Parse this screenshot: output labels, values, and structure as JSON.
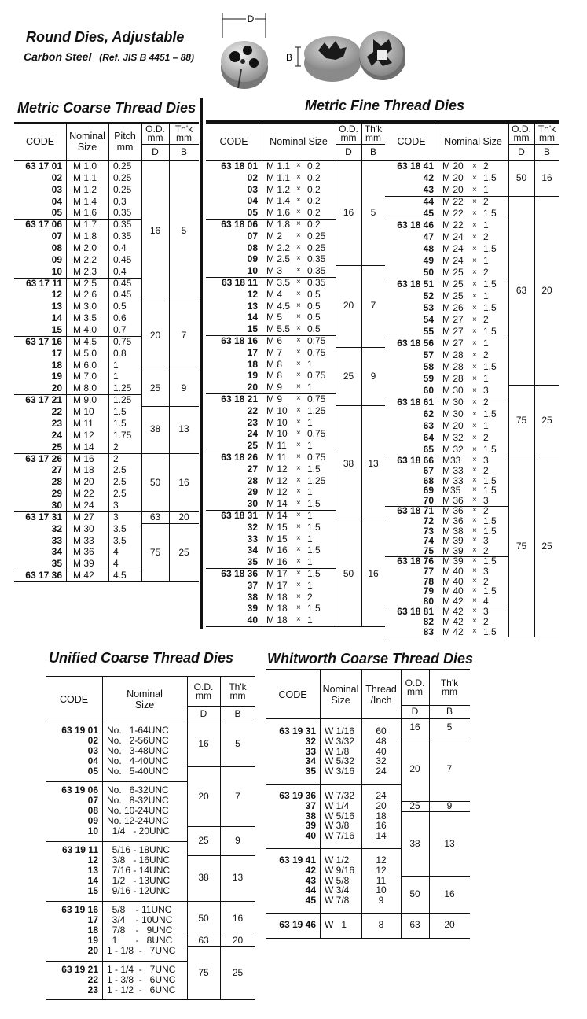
{
  "header": {
    "title": "Round Dies, Adjustable",
    "subtitle": "Carbon Steel",
    "reference": "(Ref. JIS B 4451 – 88)",
    "dim_d": "D",
    "dim_b": "B"
  },
  "tables": {
    "coarse": {
      "title": "Metric Coarse Thread Dies",
      "header": {
        "code": "CODE",
        "nominal": "Nominal\nSize",
        "pitch": "Pitch\nmm",
        "od": "O.D.\nmm",
        "od_sym": "D",
        "thk": "Th'k\nmm",
        "thk_sym": "B"
      },
      "rows": [
        [
          "63 17 01",
          "M 1.0",
          "0.25"
        ],
        [
          "02",
          "M 1.1",
          "0.25"
        ],
        [
          "03",
          "M 1.2",
          "0.25"
        ],
        [
          "04",
          "M 1.4",
          "0.3"
        ],
        [
          "05",
          "M 1.6",
          "0.35"
        ],
        [
          "63 17 06",
          "M 1.7",
          "0.35"
        ],
        [
          "07",
          "M 1.8",
          "0.35"
        ],
        [
          "08",
          "M 2.0",
          "0.4"
        ],
        [
          "09",
          "M 2.2",
          "0.45"
        ],
        [
          "10",
          "M 2.3",
          "0.4"
        ],
        [
          "63 17 11",
          "M 2.5",
          "0.45"
        ],
        [
          "12",
          "M 2.6",
          "0.45"
        ],
        [
          "13",
          "M 3.0",
          "0.5"
        ],
        [
          "14",
          "M 3.5",
          "0.6"
        ],
        [
          "15",
          "M 4.0",
          "0.7"
        ],
        [
          "63 17 16",
          "M 4.5",
          "0.75"
        ],
        [
          "17",
          "M 5.0",
          "0.8"
        ],
        [
          "18",
          "M 6.0",
          "1"
        ],
        [
          "19",
          "M 7.0",
          "1"
        ],
        [
          "20",
          "M 8.0",
          "1.25"
        ],
        [
          "63 17 21",
          "M 9.0",
          "1.25"
        ],
        [
          "22",
          "M 10",
          "1.5"
        ],
        [
          "23",
          "M 11",
          "1.5"
        ],
        [
          "24",
          "M 12",
          "1.75"
        ],
        [
          "25",
          "M 14",
          "2"
        ],
        [
          "63 17 26",
          "M 16",
          "2"
        ],
        [
          "27",
          "M 18",
          "2.5"
        ],
        [
          "28",
          "M 20",
          "2.5"
        ],
        [
          "29",
          "M 22",
          "2.5"
        ],
        [
          "30",
          "M 24",
          "3"
        ],
        [
          "63 17 31",
          "M 27",
          "3"
        ],
        [
          "32",
          "M 30",
          "3.5"
        ],
        [
          "33",
          "M 33",
          "3.5"
        ],
        [
          "34",
          "M 36",
          "4"
        ],
        [
          "35",
          "M 39",
          "4"
        ],
        [
          "63 17 36",
          "M 42",
          "4.5"
        ]
      ],
      "sizes": [
        {
          "D": "16",
          "B": "5",
          "rows": [
            0,
            11
          ]
        },
        {
          "D": "20",
          "B": "7",
          "rows": [
            12,
            17
          ]
        },
        {
          "D": "25",
          "B": "9",
          "rows": [
            18,
            20
          ]
        },
        {
          "D": "38",
          "B": "13",
          "rows": [
            21,
            24
          ]
        },
        {
          "D": "50",
          "B": "16",
          "rows": [
            25,
            29
          ]
        },
        {
          "D": "63",
          "B": "20",
          "rows": [
            30,
            30
          ]
        },
        {
          "D": "75",
          "B": "25",
          "rows": [
            31,
            35
          ]
        }
      ]
    },
    "fine_left": {
      "title": "Metric Fine Thread Dies",
      "header": {
        "code": "CODE",
        "nominal": "Nominal Size",
        "times": "×",
        "od": "O.D.\nmm",
        "od_sym": "D",
        "thk": "Th'k\nmm",
        "thk_sym": "B"
      },
      "rows": [
        [
          "63 18 01",
          "M 1.1",
          "0.2"
        ],
        [
          "02",
          "M 1.1",
          "0.2"
        ],
        [
          "03",
          "M 1.2",
          "0.2"
        ],
        [
          "04",
          "M 1.4",
          "0.2"
        ],
        [
          "05",
          "M 1.6",
          "0.2"
        ],
        [
          "63 18 06",
          "M 1.8",
          "0.2"
        ],
        [
          "07",
          "M 2",
          "0.25"
        ],
        [
          "08",
          "M 2.2",
          "0.25"
        ],
        [
          "09",
          "M 2.5",
          "0.35"
        ],
        [
          "10",
          "M 3",
          "0.35"
        ],
        [
          "63 18 11",
          "M 3.5",
          "0.35"
        ],
        [
          "12",
          "M 4",
          "0.5"
        ],
        [
          "13",
          "M 4.5",
          "0.5"
        ],
        [
          "14",
          "M 5",
          "0.5"
        ],
        [
          "15",
          "M 5.5",
          "0.5"
        ],
        [
          "63 18 16",
          "M 6",
          "0:75"
        ],
        [
          "17",
          "M 7",
          "0.75"
        ],
        [
          "18",
          "M 8",
          "1"
        ],
        [
          "19",
          "M 8",
          "0.75"
        ],
        [
          "20",
          "M 9",
          "1"
        ],
        [
          "63 18 21",
          "M 9",
          "0.75"
        ],
        [
          "22",
          "M 10",
          "1.25"
        ],
        [
          "23",
          "M 10",
          "1"
        ],
        [
          "24",
          "M 10",
          "0.75"
        ],
        [
          "25",
          "M 11",
          "1"
        ],
        [
          "63 18 26",
          "M 11",
          "0.75"
        ],
        [
          "27",
          "M 12",
          "1.5"
        ],
        [
          "28",
          "M 12",
          "1.25"
        ],
        [
          "29",
          "M 12",
          "1"
        ],
        [
          "30",
          "M 14",
          "1.5"
        ],
        [
          "63 18 31",
          "M 14",
          "1"
        ],
        [
          "32",
          "M 15",
          "1.5"
        ],
        [
          "33",
          "M 15",
          "1"
        ],
        [
          "34",
          "M 16",
          "1.5"
        ],
        [
          "35",
          "M 16",
          "1"
        ],
        [
          "63 18 36",
          "M 17",
          "1.5"
        ],
        [
          "37",
          "M 17",
          "1"
        ],
        [
          "38",
          "M 18",
          "2"
        ],
        [
          "39",
          "M 18",
          "1.5"
        ],
        [
          "40",
          "M 18",
          "1"
        ]
      ],
      "sizes": [
        {
          "D": "16",
          "B": "5",
          "rows": [
            0,
            8
          ]
        },
        {
          "D": "20",
          "B": "7",
          "rows": [
            9,
            15
          ]
        },
        {
          "D": "25",
          "B": "9",
          "rows": [
            16,
            20
          ]
        },
        {
          "D": "38",
          "B": "13",
          "rows": [
            21,
            30
          ]
        },
        {
          "D": "50",
          "B": "16",
          "rows": [
            31,
            39
          ]
        }
      ]
    },
    "fine_right": {
      "header": {
        "code": "CODE",
        "nominal": "Nominal Size",
        "times": "×",
        "od": "O.D.\nmm",
        "od_sym": "D",
        "thk": "Th'k\nmm",
        "thk_sym": "B"
      },
      "rows": [
        [
          "63 18 41",
          "M 20",
          "2"
        ],
        [
          "42",
          "M 20",
          "1.5"
        ],
        [
          "43",
          "M 20",
          "1"
        ],
        [
          "44",
          "M 22",
          "2"
        ],
        [
          "45",
          "M 22",
          "1.5"
        ],
        [
          "63 18 46",
          "M 22",
          "1"
        ],
        [
          "47",
          "M 24",
          "2"
        ],
        [
          "48",
          "M 24",
          "1.5"
        ],
        [
          "49",
          "M 24",
          "1"
        ],
        [
          "50",
          "M 25",
          "2"
        ],
        [
          "63 18 51",
          "M 25",
          "1.5"
        ],
        [
          "52",
          "M 25",
          "1"
        ],
        [
          "53",
          "M 26",
          "1.5"
        ],
        [
          "54",
          "M 27",
          "2"
        ],
        [
          "55",
          "M 27",
          "1.5"
        ],
        [
          "63 18 56",
          "M 27",
          "1"
        ],
        [
          "57",
          "M 28",
          "2"
        ],
        [
          "58",
          "M 28",
          "1.5"
        ],
        [
          "59",
          "M 28",
          "1"
        ],
        [
          "60",
          "M 30",
          "3"
        ],
        [
          "63 18 61",
          "M 30",
          "2"
        ],
        [
          "62",
          "M 30",
          "1.5"
        ],
        [
          "63",
          "M 20",
          "1"
        ],
        [
          "64",
          "M 32",
          "2"
        ],
        [
          "65",
          "M 32",
          "1.5"
        ],
        [
          "63 18 66",
          "M33",
          "3"
        ],
        [
          "67",
          "M 33",
          "2"
        ],
        [
          "68",
          "M 33",
          "1.5"
        ],
        [
          "69",
          "M35",
          "1.5"
        ],
        [
          "70",
          "M 36",
          "3"
        ],
        [
          "63 18 71",
          "M 36",
          "2"
        ],
        [
          "72",
          "M 36",
          "1.5"
        ],
        [
          "73",
          "M 38",
          "1.5"
        ],
        [
          "74",
          "M 39",
          "3"
        ],
        [
          "75",
          "M 39",
          "2"
        ],
        [
          "63 18 76",
          "M 39",
          "1.5"
        ],
        [
          "77",
          "M 40",
          "3"
        ],
        [
          "78",
          "M 40",
          "2"
        ],
        [
          "79",
          "M 40",
          "1.5"
        ],
        [
          "80",
          "M 42",
          "4"
        ],
        [
          "63 18 81",
          "M 42",
          "3"
        ],
        [
          "82",
          "M 42",
          "2"
        ],
        [
          "83",
          "M 42",
          "1.5"
        ]
      ],
      "sizes": [
        {
          "D": "50",
          "B": "16",
          "rows": [
            0,
            2
          ]
        },
        {
          "D": "63",
          "B": "20",
          "rows": [
            3,
            18
          ]
        },
        {
          "D": "75",
          "B": "25",
          "rows": [
            19,
            24
          ]
        },
        {
          "D": "75",
          "B": "25",
          "rows": [
            25,
            42
          ]
        }
      ]
    },
    "unified": {
      "title": "Unified Coarse Thread Dies",
      "header": {
        "code": "CODE",
        "nominal": "Nominal\nSize",
        "od": "O.D.\nmm",
        "od_sym": "D",
        "thk": "Th'k\nmm",
        "thk_sym": "B"
      },
      "rows": [
        [
          "63 19 01",
          "No.   1-64UNC"
        ],
        [
          "02",
          "No.   2-56UNC"
        ],
        [
          "03",
          "No.   3-48UNC"
        ],
        [
          "04",
          "No.   4-40UNC"
        ],
        [
          "05",
          "No.   5-40UNC"
        ],
        [
          "63 19 06",
          "No.   6-32UNC"
        ],
        [
          "07",
          "No.   8-32UNC"
        ],
        [
          "08",
          "No. 10-24UNC"
        ],
        [
          "09",
          "No. 12-24UNC"
        ],
        [
          "10",
          "  1/4   - 20UNC"
        ],
        [
          "63 19 11",
          "  5/16 - 18UNC"
        ],
        [
          "12",
          "  3/8   - 16UNC"
        ],
        [
          "13",
          "  7/16 - 14UNC"
        ],
        [
          "14",
          "  1/2   - 13UNC"
        ],
        [
          "15",
          "  9/16 - 12UNC"
        ],
        [
          "63 19 16",
          "  5/8    - 11UNC"
        ],
        [
          "17",
          "  3/4    - 10UNC"
        ],
        [
          "18",
          "  7/8    -   9UNC"
        ],
        [
          "19",
          "  1       -   8UNC"
        ],
        [
          "20",
          "1 - 1/8  -   7UNC"
        ],
        [
          "63 19 21",
          "1 - 1/4  -   7UNC"
        ],
        [
          "22",
          "1 - 3/8  -   6UNC"
        ],
        [
          "23",
          "1 - 1/2  -   6UNC"
        ]
      ],
      "sizes": [
        {
          "D": "16",
          "B": "5",
          "rows": [
            0,
            3
          ]
        },
        {
          "D": "20",
          "B": "7",
          "rows": [
            4,
            8
          ]
        },
        {
          "D": "25",
          "B": "9",
          "rows": [
            9,
            10
          ]
        },
        {
          "D": "38",
          "B": "13",
          "rows": [
            11,
            14
          ]
        },
        {
          "D": "50",
          "B": "16",
          "rows": [
            15,
            17
          ]
        },
        {
          "D": "63",
          "B": "20",
          "rows": [
            18,
            18
          ]
        },
        {
          "D": "75",
          "B": "25",
          "rows": [
            19,
            22
          ]
        }
      ]
    },
    "whitworth": {
      "title": "Whitworth Coarse Thread Dies",
      "header": {
        "code": "CODE",
        "nominal": "Nominal\nSize",
        "thread": "Thread\n/Inch",
        "od": "O.D.\nmm",
        "od_sym": "D",
        "thk": "Th'k\nmm",
        "thk_sym": "B"
      },
      "rows": [
        [
          "63 19 31",
          "W 1/16",
          "60"
        ],
        [
          "32",
          "W 3/32",
          "48"
        ],
        [
          "33",
          "W 1/8",
          "40"
        ],
        [
          "34",
          "W 5/32",
          "32"
        ],
        [
          "35",
          "W 3/16",
          "24"
        ],
        [
          "63 19 36",
          "W 7/32",
          "24"
        ],
        [
          "37",
          "W 1/4",
          "20"
        ],
        [
          "38",
          "W 5/16",
          "18"
        ],
        [
          "39",
          "W 3/8",
          "16"
        ],
        [
          "40",
          "W 7/16",
          "14"
        ],
        [
          "63 19 41",
          "W 1/2",
          "12"
        ],
        [
          "42",
          "W 9/16",
          "12"
        ],
        [
          "43",
          "W 5/8",
          "11"
        ],
        [
          "44",
          "W 3/4",
          "10"
        ],
        [
          "45",
          "W 7/8",
          "9"
        ],
        [
          "63 19 46",
          "W   1",
          "8"
        ]
      ],
      "sizes": [
        {
          "D": "16",
          "B": "5",
          "rows": [
            0,
            0
          ]
        },
        {
          "D": "20",
          "B": "7",
          "rows": [
            1,
            5
          ]
        },
        {
          "D": "25",
          "B": "9",
          "rows": [
            6,
            6
          ]
        },
        {
          "D": "38",
          "B": "13",
          "rows": [
            7,
            11
          ]
        },
        {
          "D": "50",
          "B": "16",
          "rows": [
            12,
            14
          ]
        },
        {
          "D": "63",
          "B": "20",
          "rows": [
            15,
            15
          ]
        }
      ]
    }
  }
}
